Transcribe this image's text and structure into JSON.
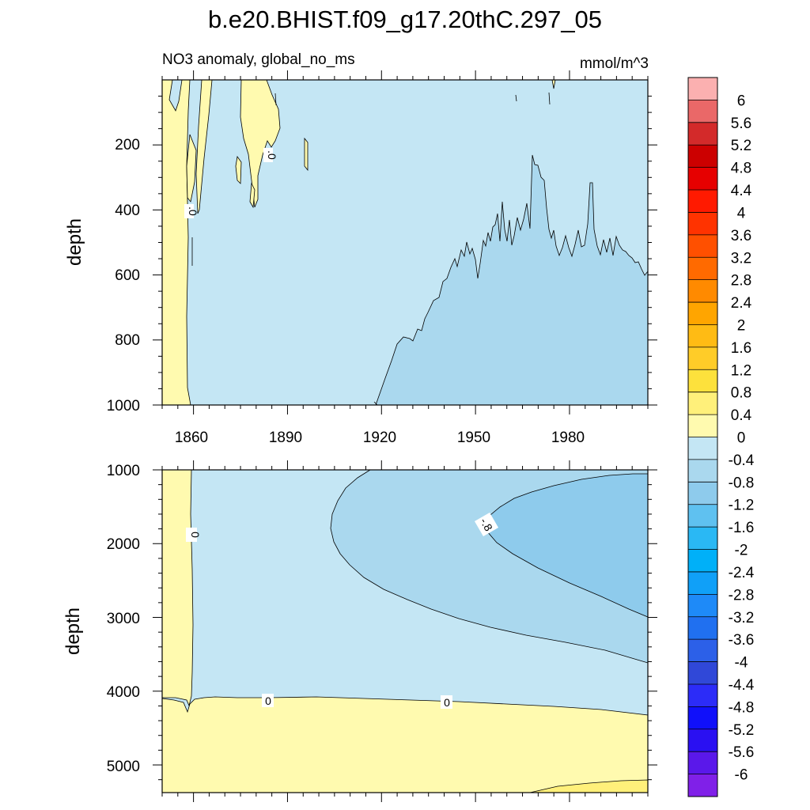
{
  "chart_data": {
    "title": "b.e20.BHIST.f09_g17.20thC.297_05",
    "subtitle_left": "NO3 anomaly, global_no_ms",
    "units": "mmol/m^3",
    "type": "contour",
    "x_ticks": [
      "1860",
      "1890",
      "1920",
      "1950",
      "1980"
    ],
    "xlim": [
      1850,
      2005
    ],
    "colorbar": {
      "labels": [
        "6",
        "5.6",
        "5.2",
        "4.8",
        "4.4",
        "4",
        "3.6",
        "3.2",
        "2.8",
        "2.4",
        "2",
        "1.6",
        "1.2",
        "0.8",
        "0.4",
        "0",
        "-0.4",
        "-0.8",
        "-1.2",
        "-1.6",
        "-2",
        "-2.4",
        "-2.8",
        "-3.2",
        "-3.6",
        "-4",
        "-4.4",
        "-4.8",
        "-5.2",
        "-5.6",
        "-6"
      ],
      "colors": [
        "#fbb0b0",
        "#ea6868",
        "#d32a2a",
        "#cc0000",
        "#e60000",
        "#ff1a00",
        "#ff3300",
        "#ff5000",
        "#ff6a00",
        "#ff8a00",
        "#ffa500",
        "#ffbb14",
        "#ffcc28",
        "#fde13c",
        "#fff07a",
        "#fffaaf",
        "#c4e6f4",
        "#aad8ee",
        "#8ecbec",
        "#5fc1f0",
        "#2ab8f4",
        "#00b0f8",
        "#10a0f8",
        "#1e8af8",
        "#2070f0",
        "#2c60e8",
        "#3048d8",
        "#2c2cf8",
        "#1010fa",
        "#2a10f2",
        "#5a18ea",
        "#8020e8"
      ]
    },
    "panels": [
      {
        "name": "upper",
        "ylabel": "depth",
        "y_ticks": [
          "200",
          "400",
          "600",
          "800",
          "1000"
        ],
        "ylim": [
          0,
          1000
        ],
        "contour_labels": [
          ".0",
          ".0"
        ]
      },
      {
        "name": "lower",
        "ylabel": "depth",
        "y_ticks": [
          "1000",
          "2000",
          "3000",
          "4000",
          "5000"
        ],
        "ylim": [
          1000,
          5375
        ],
        "contour_labels": [
          "0",
          "-.8",
          "0",
          "0"
        ]
      }
    ]
  }
}
